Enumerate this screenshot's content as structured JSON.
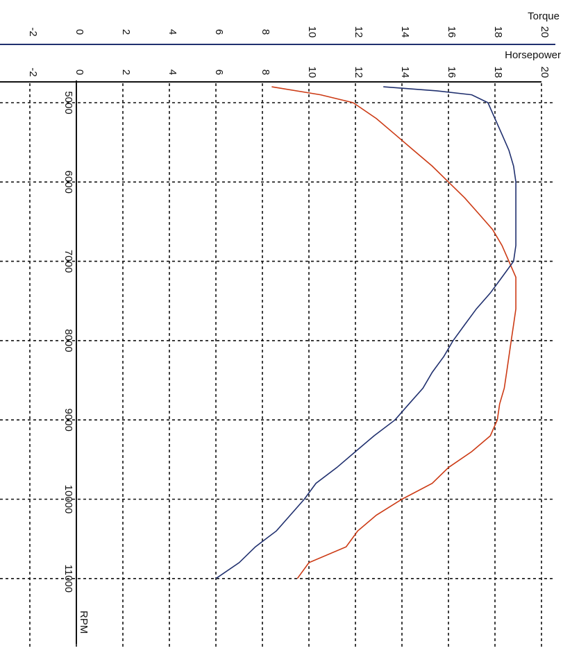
{
  "chart_data": {
    "type": "line",
    "orientation": "rotated-90-clockwise",
    "title": "",
    "xlabel": "RPM",
    "x_ticks": [
      5000,
      6000,
      7000,
      8000,
      9000,
      10000,
      11000
    ],
    "xlim": [
      4800,
      11500
    ],
    "y_axes": [
      {
        "label": "Torque",
        "ticks": [
          -2,
          0,
          2,
          4,
          6,
          8,
          10,
          12,
          14,
          16,
          18,
          20
        ],
        "ylim": [
          -3,
          20
        ]
      },
      {
        "label": "Horsepower",
        "ticks": [
          -2,
          0,
          2,
          4,
          6,
          8,
          10,
          12,
          14,
          16,
          18,
          20
        ],
        "ylim": [
          -3,
          20
        ]
      }
    ],
    "grid": true,
    "colors": {
      "horsepower": "#cc3a14",
      "torque": "#1f2f6e",
      "top_axis": "#1f2f6e",
      "text": "#111111"
    },
    "series": [
      {
        "name": "Horsepower",
        "color": "#cc3a14",
        "x": [
          4800,
          4900,
          5000,
          5200,
          5400,
          5600,
          5800,
          6000,
          6200,
          6400,
          6600,
          6800,
          7000,
          7200,
          7400,
          7600,
          7800,
          8000,
          8200,
          8400,
          8600,
          8800,
          9000,
          9200,
          9400,
          9600,
          9800,
          10000,
          10200,
          10400,
          10600,
          10800,
          11000
        ],
        "values": [
          8.4,
          10.5,
          11.9,
          12.9,
          13.7,
          14.5,
          15.3,
          16.0,
          16.7,
          17.3,
          17.9,
          18.3,
          18.6,
          18.9,
          18.9,
          18.9,
          18.8,
          18.7,
          18.6,
          18.5,
          18.4,
          18.2,
          18.1,
          17.8,
          17.0,
          16.0,
          15.3,
          14.0,
          12.9,
          12.1,
          11.6,
          10.0,
          9.5
        ]
      },
      {
        "name": "Torque",
        "color": "#1f2f6e",
        "x": [
          4800,
          4850,
          4900,
          5000,
          5200,
          5400,
          5600,
          5800,
          6000,
          6200,
          6400,
          6600,
          6800,
          7000,
          7200,
          7400,
          7600,
          7800,
          8000,
          8200,
          8400,
          8600,
          8800,
          9000,
          9200,
          9400,
          9600,
          9800,
          10000,
          10200,
          10400,
          10600,
          10800,
          11000
        ],
        "values": [
          13.2,
          15.5,
          17.0,
          17.7,
          18.0,
          18.3,
          18.6,
          18.8,
          18.9,
          18.9,
          18.9,
          18.9,
          18.9,
          18.8,
          18.3,
          17.8,
          17.2,
          16.7,
          16.2,
          15.8,
          15.3,
          14.9,
          14.3,
          13.7,
          12.8,
          12.0,
          11.2,
          10.3,
          9.8,
          9.2,
          8.6,
          7.7,
          7.0,
          6.0
        ]
      }
    ]
  }
}
